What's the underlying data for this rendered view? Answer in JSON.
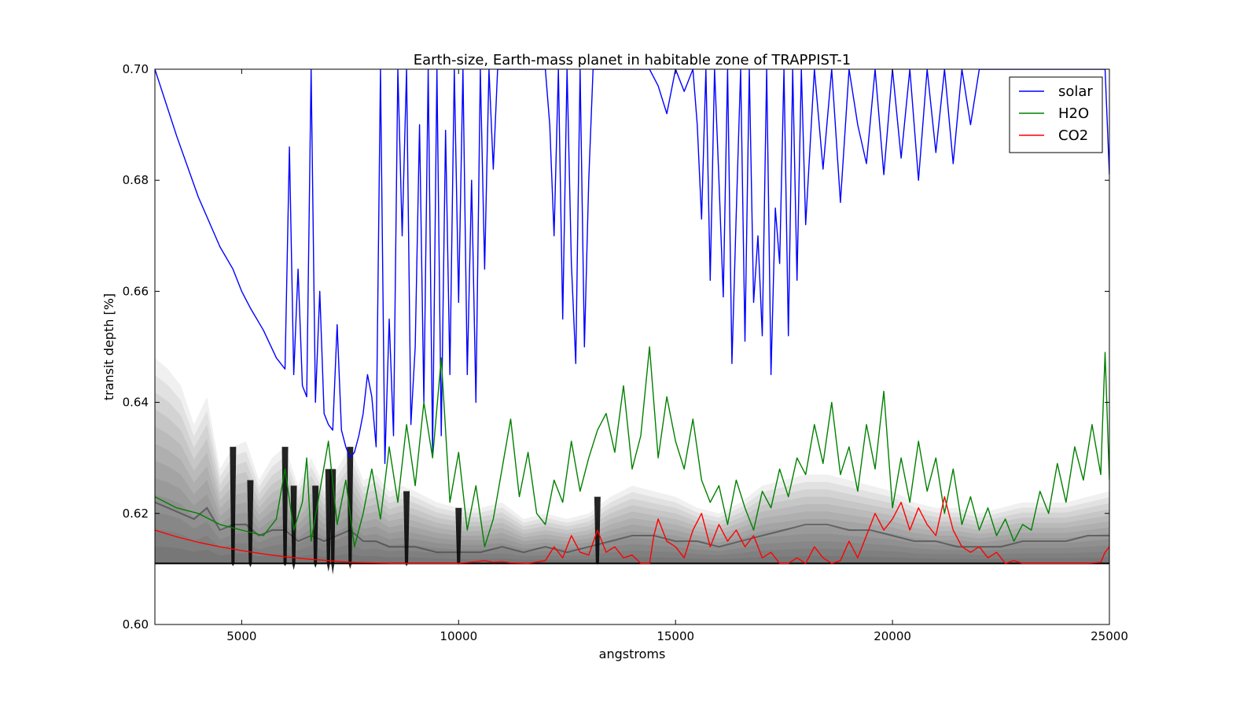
{
  "chart_data": {
    "type": "line",
    "title": "Earth-size, Earth-mass planet in habitable zone of TRAPPIST-1",
    "xlabel": "angstroms",
    "ylabel": "transit depth [%]",
    "xlim": [
      3000,
      25000
    ],
    "ylim": [
      0.6,
      0.7
    ],
    "x_ticks": [
      5000,
      10000,
      15000,
      20000,
      25000
    ],
    "x_tick_labels": [
      "5000",
      "10000",
      "15000",
      "20000",
      "25000"
    ],
    "y_ticks": [
      0.6,
      0.62,
      0.64,
      0.66,
      0.68,
      0.7
    ],
    "y_tick_labels": [
      "0.60",
      "0.62",
      "0.64",
      "0.66",
      "0.68",
      "0.70"
    ],
    "grid": false,
    "legend": {
      "placement": "top-right",
      "entries": [
        {
          "label": "solar",
          "color": "#0000ff"
        },
        {
          "label": "H2O",
          "color": "#008000"
        },
        {
          "label": "CO2",
          "color": "#ff0000"
        }
      ]
    },
    "series": [
      {
        "name": "solar",
        "color": "#0000ff",
        "x": [
          3000,
          3500,
          4000,
          4500,
          4800,
          5000,
          5200,
          5500,
          5800,
          6000,
          6100,
          6200,
          6300,
          6400,
          6500,
          6600,
          6700,
          6800,
          6900,
          7000,
          7100,
          7200,
          7300,
          7400,
          7500,
          7600,
          7700,
          7800,
          7900,
          8000,
          8100,
          8200,
          8300,
          8400,
          8500,
          8600,
          8700,
          8800,
          8900,
          9000,
          9100,
          9200,
          9300,
          9400,
          9500,
          9600,
          9700,
          9800,
          9900,
          10000,
          10100,
          10200,
          10300,
          10400,
          10500,
          10600,
          10700,
          10800,
          10900,
          11000,
          11200,
          11400,
          11600,
          11800,
          12000,
          12100,
          12200,
          12300,
          12400,
          12500,
          12600,
          12700,
          12800,
          12900,
          13000,
          13100,
          13200,
          13400,
          13600,
          13800,
          14000,
          14200,
          14400,
          14600,
          14800,
          15000,
          15200,
          15400,
          15500,
          15600,
          15700,
          15800,
          15900,
          16000,
          16100,
          16200,
          16300,
          16400,
          16500,
          16600,
          16700,
          16800,
          16900,
          17000,
          17100,
          17200,
          17300,
          17400,
          17500,
          17600,
          17700,
          17800,
          17900,
          18000,
          18200,
          18400,
          18600,
          18800,
          19000,
          19200,
          19400,
          19600,
          19800,
          20000,
          20200,
          20400,
          20600,
          20800,
          21000,
          21200,
          21400,
          21600,
          21800,
          22000,
          24500,
          24700,
          24800,
          24900,
          25000
        ],
        "y": [
          0.7,
          0.688,
          0.677,
          0.668,
          0.664,
          0.66,
          0.657,
          0.653,
          0.648,
          0.646,
          0.686,
          0.645,
          0.664,
          0.643,
          0.641,
          0.7,
          0.64,
          0.66,
          0.638,
          0.636,
          0.635,
          0.654,
          0.635,
          0.632,
          0.63,
          0.631,
          0.634,
          0.638,
          0.645,
          0.641,
          0.632,
          0.7,
          0.629,
          0.655,
          0.634,
          0.7,
          0.67,
          0.7,
          0.636,
          0.65,
          0.69,
          0.64,
          0.7,
          0.631,
          0.7,
          0.634,
          0.689,
          0.645,
          0.7,
          0.658,
          0.7,
          0.645,
          0.68,
          0.64,
          0.7,
          0.664,
          0.7,
          0.682,
          0.7,
          0.7,
          0.7,
          0.7,
          0.7,
          0.7,
          0.7,
          0.69,
          0.67,
          0.7,
          0.655,
          0.7,
          0.665,
          0.647,
          0.7,
          0.65,
          0.68,
          0.7,
          0.7,
          0.7,
          0.7,
          0.7,
          0.7,
          0.7,
          0.7,
          0.697,
          0.692,
          0.7,
          0.696,
          0.7,
          0.69,
          0.673,
          0.7,
          0.662,
          0.7,
          0.68,
          0.659,
          0.7,
          0.647,
          0.674,
          0.7,
          0.651,
          0.7,
          0.658,
          0.67,
          0.652,
          0.7,
          0.645,
          0.675,
          0.665,
          0.7,
          0.652,
          0.7,
          0.662,
          0.7,
          0.672,
          0.7,
          0.682,
          0.7,
          0.676,
          0.7,
          0.69,
          0.683,
          0.7,
          0.681,
          0.7,
          0.684,
          0.7,
          0.68,
          0.7,
          0.685,
          0.7,
          0.683,
          0.7,
          0.69,
          0.7,
          0.7,
          0.7,
          0.7,
          0.7,
          0.681
        ]
      },
      {
        "name": "H2O",
        "color": "#008000",
        "x": [
          3000,
          3500,
          4000,
          4500,
          5000,
          5500,
          5800,
          6000,
          6200,
          6400,
          6500,
          6600,
          6800,
          7000,
          7200,
          7400,
          7600,
          7800,
          8000,
          8200,
          8400,
          8600,
          8800,
          9000,
          9200,
          9400,
          9600,
          9800,
          10000,
          10200,
          10400,
          10600,
          10800,
          11000,
          11200,
          11400,
          11600,
          11800,
          12000,
          12200,
          12400,
          12600,
          12800,
          13000,
          13200,
          13400,
          13600,
          13800,
          14000,
          14200,
          14400,
          14600,
          14800,
          15000,
          15200,
          15400,
          15600,
          15800,
          16000,
          16200,
          16400,
          16600,
          16800,
          17000,
          17200,
          17400,
          17600,
          17800,
          18000,
          18200,
          18400,
          18600,
          18800,
          19000,
          19200,
          19400,
          19600,
          19800,
          20000,
          20200,
          20400,
          20600,
          20800,
          21000,
          21200,
          21400,
          21600,
          21800,
          22000,
          22200,
          22400,
          22600,
          22800,
          23000,
          23200,
          23400,
          23600,
          23800,
          24000,
          24200,
          24400,
          24600,
          24800,
          24900,
          25000
        ],
        "y": [
          0.623,
          0.621,
          0.62,
          0.618,
          0.617,
          0.616,
          0.619,
          0.628,
          0.617,
          0.622,
          0.63,
          0.615,
          0.624,
          0.633,
          0.618,
          0.626,
          0.614,
          0.62,
          0.628,
          0.619,
          0.632,
          0.622,
          0.636,
          0.625,
          0.64,
          0.63,
          0.648,
          0.622,
          0.631,
          0.617,
          0.625,
          0.614,
          0.619,
          0.628,
          0.637,
          0.623,
          0.631,
          0.62,
          0.618,
          0.626,
          0.622,
          0.633,
          0.624,
          0.63,
          0.635,
          0.638,
          0.631,
          0.643,
          0.628,
          0.634,
          0.65,
          0.63,
          0.641,
          0.633,
          0.628,
          0.637,
          0.626,
          0.622,
          0.625,
          0.618,
          0.626,
          0.621,
          0.617,
          0.624,
          0.621,
          0.628,
          0.623,
          0.63,
          0.627,
          0.636,
          0.629,
          0.64,
          0.627,
          0.632,
          0.624,
          0.636,
          0.628,
          0.642,
          0.621,
          0.63,
          0.622,
          0.633,
          0.624,
          0.63,
          0.62,
          0.628,
          0.618,
          0.623,
          0.617,
          0.621,
          0.616,
          0.619,
          0.615,
          0.618,
          0.617,
          0.624,
          0.62,
          0.629,
          0.622,
          0.632,
          0.626,
          0.636,
          0.627,
          0.649,
          0.626
        ]
      },
      {
        "name": "CO2",
        "color": "#ff0000",
        "x": [
          3000,
          3500,
          4000,
          4500,
          5000,
          5500,
          6000,
          6500,
          7000,
          7500,
          8000,
          8500,
          9000,
          9500,
          10000,
          10400,
          10600,
          10800,
          11000,
          11200,
          11600,
          12000,
          12200,
          12400,
          12600,
          12800,
          13000,
          13200,
          13400,
          13600,
          13800,
          14000,
          14200,
          14400,
          14500,
          14600,
          14700,
          14800,
          15000,
          15200,
          15400,
          15600,
          15800,
          16000,
          16200,
          16400,
          16600,
          16800,
          17000,
          17200,
          17400,
          17600,
          17800,
          18000,
          18200,
          18400,
          18600,
          18800,
          19000,
          19200,
          19400,
          19600,
          19800,
          20000,
          20200,
          20400,
          20600,
          20800,
          21000,
          21200,
          21400,
          21600,
          21800,
          22000,
          22200,
          22400,
          22600,
          22800,
          23000,
          23500,
          24000,
          24500,
          24800,
          24900,
          25000
        ],
        "y": [
          0.617,
          0.6158,
          0.6148,
          0.614,
          0.6133,
          0.6127,
          0.6122,
          0.6118,
          0.6115,
          0.6112,
          0.6111,
          0.611,
          0.611,
          0.611,
          0.611,
          0.6113,
          0.6115,
          0.6112,
          0.6113,
          0.6111,
          0.611,
          0.6115,
          0.614,
          0.612,
          0.616,
          0.613,
          0.6125,
          0.617,
          0.613,
          0.614,
          0.612,
          0.6125,
          0.611,
          0.611,
          0.616,
          0.619,
          0.617,
          0.615,
          0.614,
          0.612,
          0.617,
          0.62,
          0.614,
          0.618,
          0.615,
          0.617,
          0.614,
          0.616,
          0.612,
          0.613,
          0.611,
          0.611,
          0.612,
          0.611,
          0.614,
          0.612,
          0.611,
          0.6115,
          0.615,
          0.612,
          0.616,
          0.62,
          0.617,
          0.619,
          0.622,
          0.617,
          0.621,
          0.618,
          0.616,
          0.623,
          0.617,
          0.614,
          0.613,
          0.614,
          0.612,
          0.613,
          0.611,
          0.6115,
          0.611,
          0.611,
          0.611,
          0.611,
          0.6112,
          0.613,
          0.614
        ]
      }
    ],
    "model_ensemble": {
      "color": "#000000",
      "x": [
        3000,
        3300,
        3600,
        3900,
        4200,
        4500,
        4800,
        5100,
        5400,
        5700,
        6000,
        6300,
        6600,
        6900,
        7200,
        7500,
        7800,
        8100,
        8400,
        8700,
        9000,
        9500,
        10000,
        10500,
        11000,
        11500,
        12000,
        12500,
        13000,
        13500,
        14000,
        14500,
        15000,
        15500,
        16000,
        16500,
        17000,
        17500,
        18000,
        18500,
        19000,
        19500,
        20000,
        20500,
        21000,
        21500,
        22000,
        22500,
        23000,
        23500,
        24000,
        24500,
        25000
      ],
      "upper": [
        0.648,
        0.646,
        0.643,
        0.636,
        0.641,
        0.628,
        0.632,
        0.633,
        0.626,
        0.63,
        0.632,
        0.625,
        0.63,
        0.625,
        0.628,
        0.632,
        0.626,
        0.627,
        0.624,
        0.625,
        0.624,
        0.622,
        0.621,
        0.621,
        0.622,
        0.619,
        0.62,
        0.619,
        0.62,
        0.623,
        0.625,
        0.624,
        0.623,
        0.621,
        0.62,
        0.622,
        0.625,
        0.626,
        0.627,
        0.627,
        0.626,
        0.625,
        0.624,
        0.622,
        0.621,
        0.621,
        0.62,
        0.621,
        0.622,
        0.622,
        0.622,
        0.623,
        0.624
      ],
      "median": [
        0.622,
        0.621,
        0.62,
        0.619,
        0.621,
        0.617,
        0.618,
        0.618,
        0.616,
        0.617,
        0.617,
        0.615,
        0.616,
        0.615,
        0.616,
        0.617,
        0.615,
        0.615,
        0.614,
        0.614,
        0.614,
        0.613,
        0.613,
        0.613,
        0.614,
        0.613,
        0.614,
        0.613,
        0.614,
        0.615,
        0.616,
        0.616,
        0.615,
        0.615,
        0.614,
        0.615,
        0.616,
        0.617,
        0.618,
        0.618,
        0.617,
        0.617,
        0.616,
        0.615,
        0.615,
        0.614,
        0.614,
        0.614,
        0.615,
        0.615,
        0.615,
        0.616,
        0.616
      ],
      "lower": 0.611,
      "dip_x": [
        4800,
        5200,
        6000,
        6200,
        6700,
        7000,
        7100,
        7500,
        8800,
        10000,
        13200
      ],
      "dip_y": [
        0.6105,
        0.6103,
        0.6105,
        0.6098,
        0.6102,
        0.6095,
        0.609,
        0.61,
        0.6105,
        0.6108,
        0.6108
      ]
    }
  }
}
